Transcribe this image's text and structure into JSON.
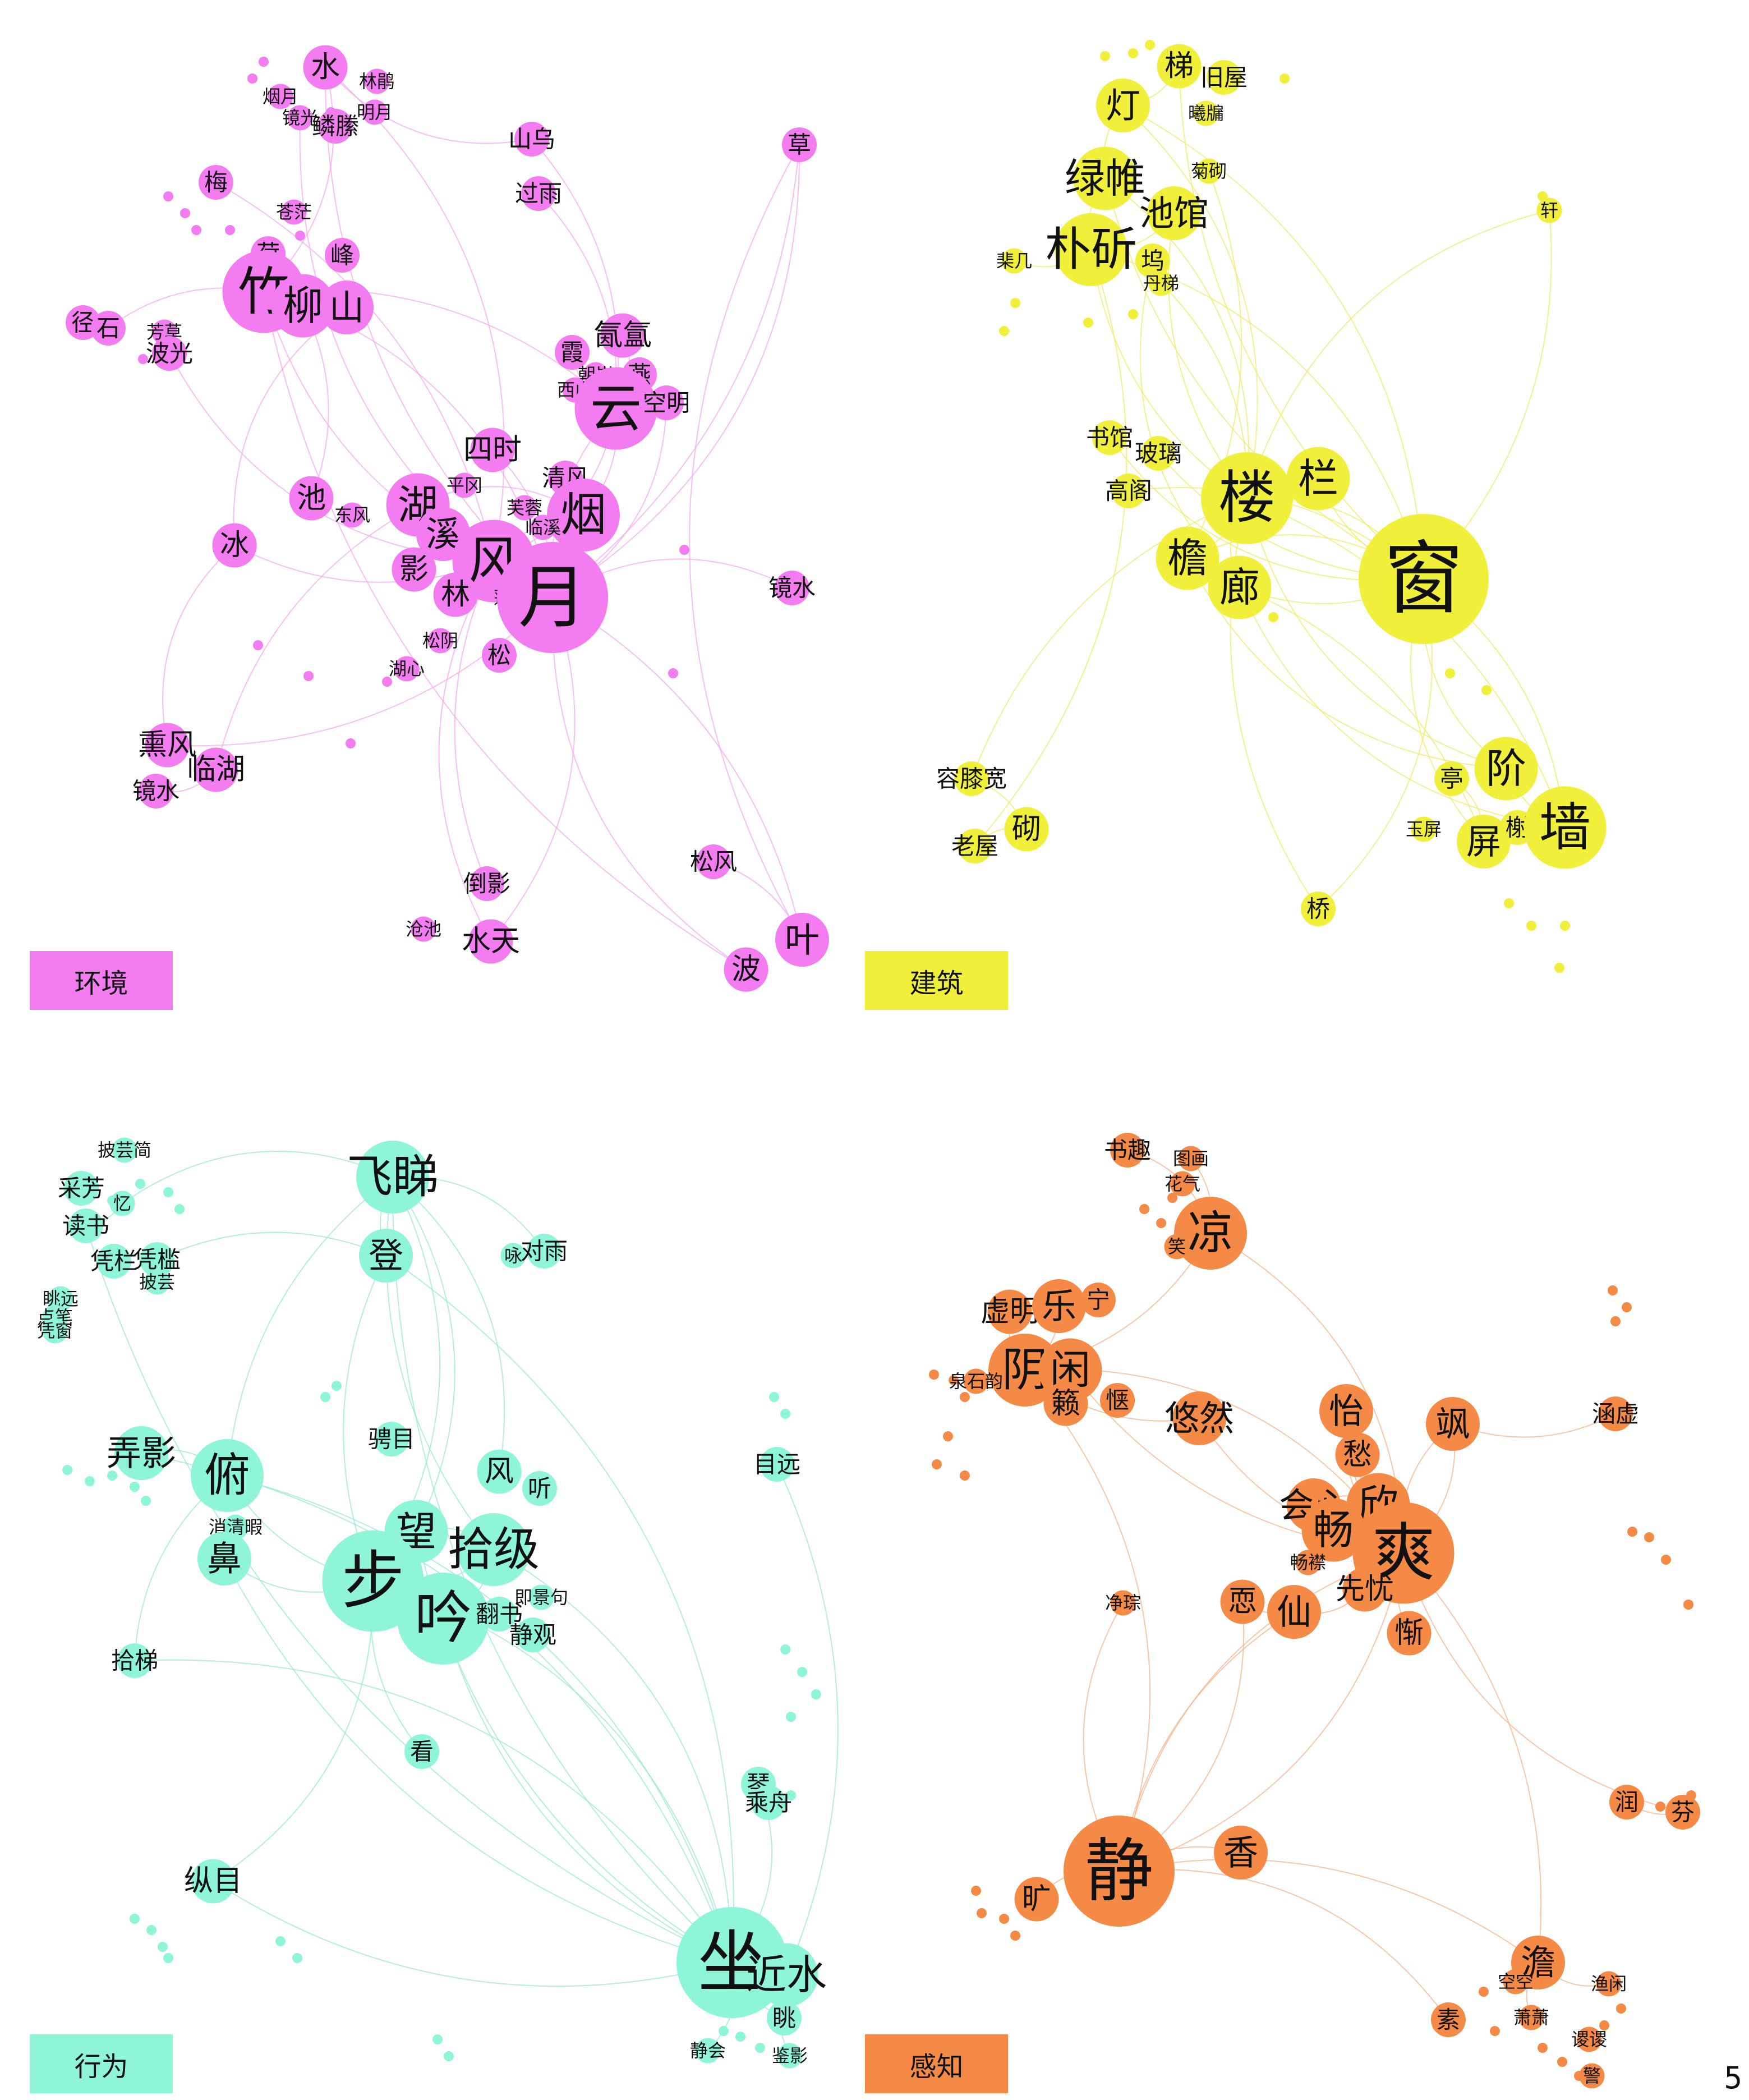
{
  "page_number": "5",
  "panels": [
    {
      "legend": "环境",
      "color": "#f27cf0",
      "edge_color": "#f5a8f1",
      "nodes": [
        {
          "label": "水",
          "weight": 3
        },
        {
          "label": "林鹃",
          "weight": 1
        },
        {
          "label": "烟月",
          "weight": 1
        },
        {
          "label": "镜光",
          "weight": 1
        },
        {
          "label": "鳞縢",
          "weight": 2
        },
        {
          "label": "明月",
          "weight": 1
        },
        {
          "label": "山乌",
          "weight": 2
        },
        {
          "label": "草",
          "weight": 2
        },
        {
          "label": "过雨",
          "weight": 2
        },
        {
          "label": "梅",
          "weight": 2
        },
        {
          "label": "苍茫",
          "weight": 1
        },
        {
          "label": "荷",
          "weight": 2
        },
        {
          "label": "峰",
          "weight": 2
        },
        {
          "label": "竹",
          "weight": 7
        },
        {
          "label": "柳",
          "weight": 5
        },
        {
          "label": "山",
          "weight": 4
        },
        {
          "label": "径",
          "weight": 2
        },
        {
          "label": "石",
          "weight": 2
        },
        {
          "label": "芳草",
          "weight": 1
        },
        {
          "label": "波光",
          "weight": 2
        },
        {
          "label": "氤氲",
          "weight": 3
        },
        {
          "label": "霞",
          "weight": 2
        },
        {
          "label": "朝岚",
          "weight": 1
        },
        {
          "label": "燕",
          "weight": 2
        },
        {
          "label": "西山",
          "weight": 1
        },
        {
          "label": "云",
          "weight": 7
        },
        {
          "label": "空明",
          "weight": 2
        },
        {
          "label": "四时",
          "weight": 3
        },
        {
          "label": "清风",
          "weight": 2
        },
        {
          "label": "池",
          "weight": 3
        },
        {
          "label": "平冈",
          "weight": 1
        },
        {
          "label": "湖",
          "weight": 5
        },
        {
          "label": "烟",
          "weight": 6
        },
        {
          "label": "芙蓉",
          "weight": 1
        },
        {
          "label": "临溪",
          "weight": 1
        },
        {
          "label": "冰",
          "weight": 3
        },
        {
          "label": "东风",
          "weight": 1
        },
        {
          "label": "溪",
          "weight": 4
        },
        {
          "label": "风",
          "weight": 7
        },
        {
          "label": "影",
          "weight": 3
        },
        {
          "label": "林",
          "weight": 3
        },
        {
          "label": "蓬岛",
          "weight": 1
        },
        {
          "label": "月",
          "weight": 10
        },
        {
          "label": "镜水",
          "weight": 2
        },
        {
          "label": "松阴",
          "weight": 1
        },
        {
          "label": "松",
          "weight": 2
        },
        {
          "label": "湖心",
          "weight": 1
        },
        {
          "label": "熏风",
          "weight": 3
        },
        {
          "label": "临湖",
          "weight": 3
        },
        {
          "label": "镜水",
          "weight": 2
        },
        {
          "label": "松风",
          "weight": 2
        },
        {
          "label": "倒影",
          "weight": 2
        },
        {
          "label": "沧池",
          "weight": 1
        },
        {
          "label": "水天",
          "weight": 3
        },
        {
          "label": "叶",
          "weight": 4
        },
        {
          "label": "波",
          "weight": 3
        }
      ]
    },
    {
      "legend": "建筑",
      "color": "#f0f03a",
      "edge_color": "#ecec6a",
      "nodes": [
        {
          "label": "梯",
          "weight": 3
        },
        {
          "label": "旧屋",
          "weight": 2
        },
        {
          "label": "灯",
          "weight": 4
        },
        {
          "label": "曦牖",
          "weight": 1
        },
        {
          "label": "绿帷",
          "weight": 5
        },
        {
          "label": "菊砌",
          "weight": 1
        },
        {
          "label": "池馆",
          "weight": 4
        },
        {
          "label": "轩",
          "weight": 1
        },
        {
          "label": "朴斫",
          "weight": 6
        },
        {
          "label": "坞",
          "weight": 2
        },
        {
          "label": "棐几",
          "weight": 1
        },
        {
          "label": "丹梯",
          "weight": 1
        },
        {
          "label": "书馆",
          "weight": 2
        },
        {
          "label": "玻璃",
          "weight": 2
        },
        {
          "label": "高阁",
          "weight": 2
        },
        {
          "label": "楼",
          "weight": 8
        },
        {
          "label": "栏",
          "weight": 5
        },
        {
          "label": "檐",
          "weight": 5
        },
        {
          "label": "廊",
          "weight": 5
        },
        {
          "label": "窗",
          "weight": 12
        },
        {
          "label": "容膝宽",
          "weight": 2
        },
        {
          "label": "砌",
          "weight": 3
        },
        {
          "label": "老屋",
          "weight": 2
        },
        {
          "label": "亭",
          "weight": 2
        },
        {
          "label": "阶",
          "weight": 5
        },
        {
          "label": "玉屏",
          "weight": 1
        },
        {
          "label": "屏",
          "weight": 4
        },
        {
          "label": "榭",
          "weight": 2
        },
        {
          "label": "墙",
          "weight": 7
        },
        {
          "label": "桥",
          "weight": 2
        }
      ]
    },
    {
      "legend": "行为",
      "color": "#8ff5d8",
      "edge_color": "#9be8d2",
      "nodes": [
        {
          "label": "披芸简",
          "weight": 1
        },
        {
          "label": "飞睇",
          "weight": 6
        },
        {
          "label": "采芳",
          "weight": 2
        },
        {
          "label": "忆",
          "weight": 1
        },
        {
          "label": "读书",
          "weight": 2
        },
        {
          "label": "凭栏",
          "weight": 2
        },
        {
          "label": "登",
          "weight": 4
        },
        {
          "label": "咏",
          "weight": 1
        },
        {
          "label": "对雨",
          "weight": 2
        },
        {
          "label": "凭槛",
          "weight": 2
        },
        {
          "label": "披芸",
          "weight": 1
        },
        {
          "label": "眺远",
          "weight": 1
        },
        {
          "label": "点笔",
          "weight": 1
        },
        {
          "label": "凭窗",
          "weight": 1
        },
        {
          "label": "弄影",
          "weight": 4
        },
        {
          "label": "俯",
          "weight": 6
        },
        {
          "label": "骋目",
          "weight": 2
        },
        {
          "label": "风",
          "weight": 3
        },
        {
          "label": "听",
          "weight": 2
        },
        {
          "label": "目远",
          "weight": 2
        },
        {
          "label": "消清暇",
          "weight": 1
        },
        {
          "label": "鼻",
          "weight": 4
        },
        {
          "label": "望",
          "weight": 5
        },
        {
          "label": "拾级",
          "weight": 6
        },
        {
          "label": "步",
          "weight": 9
        },
        {
          "label": "吟",
          "weight": 8
        },
        {
          "label": "翻书",
          "weight": 2
        },
        {
          "label": "即景句",
          "weight": 1
        },
        {
          "label": "静观",
          "weight": 2
        },
        {
          "label": "拾梯",
          "weight": 2
        },
        {
          "label": "看",
          "weight": 2
        },
        {
          "label": "琴",
          "weight": 2
        },
        {
          "label": "乘舟",
          "weight": 2
        },
        {
          "label": "纵目",
          "weight": 3
        },
        {
          "label": "坐",
          "weight": 10
        },
        {
          "label": "近水",
          "weight": 5
        },
        {
          "label": "眺",
          "weight": 2
        },
        {
          "label": "静会",
          "weight": 1
        },
        {
          "label": "鉴影",
          "weight": 1
        }
      ]
    },
    {
      "legend": "感知",
      "color": "#f48a46",
      "edge_color": "#f7b48a",
      "nodes": [
        {
          "label": "书趣",
          "weight": 2
        },
        {
          "label": "图画",
          "weight": 1
        },
        {
          "label": "花气",
          "weight": 1
        },
        {
          "label": "凉",
          "weight": 6
        },
        {
          "label": "笑",
          "weight": 1
        },
        {
          "label": "虚明",
          "weight": 3
        },
        {
          "label": "乐",
          "weight": 4
        },
        {
          "label": "宁",
          "weight": 2
        },
        {
          "label": "阴",
          "weight": 6
        },
        {
          "label": "闲",
          "weight": 5
        },
        {
          "label": "怡",
          "weight": 4
        },
        {
          "label": "泉石韵",
          "weight": 1
        },
        {
          "label": "籁",
          "weight": 3
        },
        {
          "label": "惬",
          "weight": 2
        },
        {
          "label": "悠然",
          "weight": 4
        },
        {
          "label": "飒",
          "weight": 4
        },
        {
          "label": "涵虚",
          "weight": 2
        },
        {
          "label": "愁",
          "weight": 3
        },
        {
          "label": "会心",
          "weight": 4
        },
        {
          "label": "欣",
          "weight": 5
        },
        {
          "label": "畅",
          "weight": 5
        },
        {
          "label": "爽",
          "weight": 9
        },
        {
          "label": "畅襟",
          "weight": 1
        },
        {
          "label": "先忧",
          "weight": 3
        },
        {
          "label": "净琮",
          "weight": 1
        },
        {
          "label": "恧",
          "weight": 3
        },
        {
          "label": "仙",
          "weight": 4
        },
        {
          "label": "惭",
          "weight": 3
        },
        {
          "label": "润",
          "weight": 2
        },
        {
          "label": "芬",
          "weight": 2
        },
        {
          "label": "静",
          "weight": 10
        },
        {
          "label": "香",
          "weight": 4
        },
        {
          "label": "旷",
          "weight": 3
        },
        {
          "label": "澹",
          "weight": 4
        },
        {
          "label": "空空",
          "weight": 1
        },
        {
          "label": "渔闲",
          "weight": 1
        },
        {
          "label": "萧萧",
          "weight": 1
        },
        {
          "label": "素",
          "weight": 2
        },
        {
          "label": "谡谡",
          "weight": 1
        },
        {
          "label": "警",
          "weight": 1
        }
      ]
    }
  ]
}
